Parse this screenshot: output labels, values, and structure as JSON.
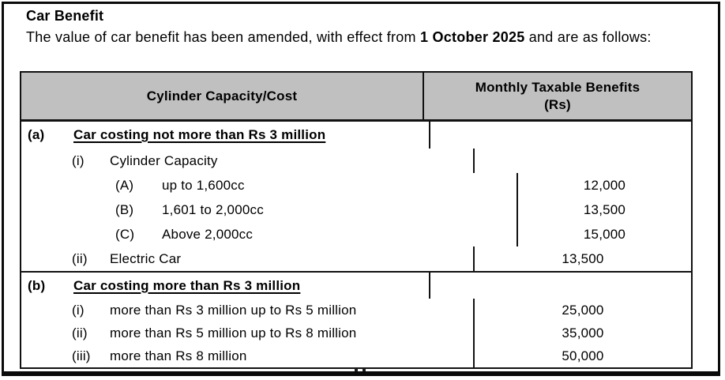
{
  "page": {
    "title": "Car Benefit",
    "intro": {
      "pre": "The value of car benefit has been amended, with effect from ",
      "bold": "1 October 2025",
      "post": " and are as follows:"
    }
  },
  "table": {
    "header": {
      "col1": "Cylinder Capacity/Cost",
      "col2_line1": "Monthly Taxable Benefits",
      "col2_line2": "(Rs)"
    },
    "sections": [
      {
        "marker": "(a)",
        "heading": "Car costing not more than Rs 3 million",
        "heading_value": "",
        "rows": [
          {
            "marker": "(i)",
            "label": "Cylinder Capacity",
            "value": ""
          },
          {
            "marker": "(A)",
            "label": "up to 1,600cc",
            "value": "12,000"
          },
          {
            "marker": "(B)",
            "label": "1,601 to 2,000cc",
            "value": "13,500"
          },
          {
            "marker": "(C)",
            "label": "Above 2,000cc",
            "value": "15,000"
          },
          {
            "marker": "(ii)",
            "label": "Electric Car",
            "value": "13,500"
          }
        ]
      },
      {
        "marker": "(b)",
        "heading": "Car costing more than Rs 3 million",
        "heading_value": "",
        "rows": [
          {
            "marker": "(i)",
            "label": "more than Rs 3 million up to Rs 5 million",
            "value": "25,000"
          },
          {
            "marker": "(ii)",
            "label": "more than Rs 5 million up to Rs 8 million",
            "value": "35,000"
          },
          {
            "marker": "(iii)",
            "label": "more than Rs 8 million",
            "value": "50,000"
          }
        ]
      }
    ]
  },
  "colors": {
    "header_bg": "#c0c0c0",
    "border": "#111111",
    "text": "#000000"
  }
}
